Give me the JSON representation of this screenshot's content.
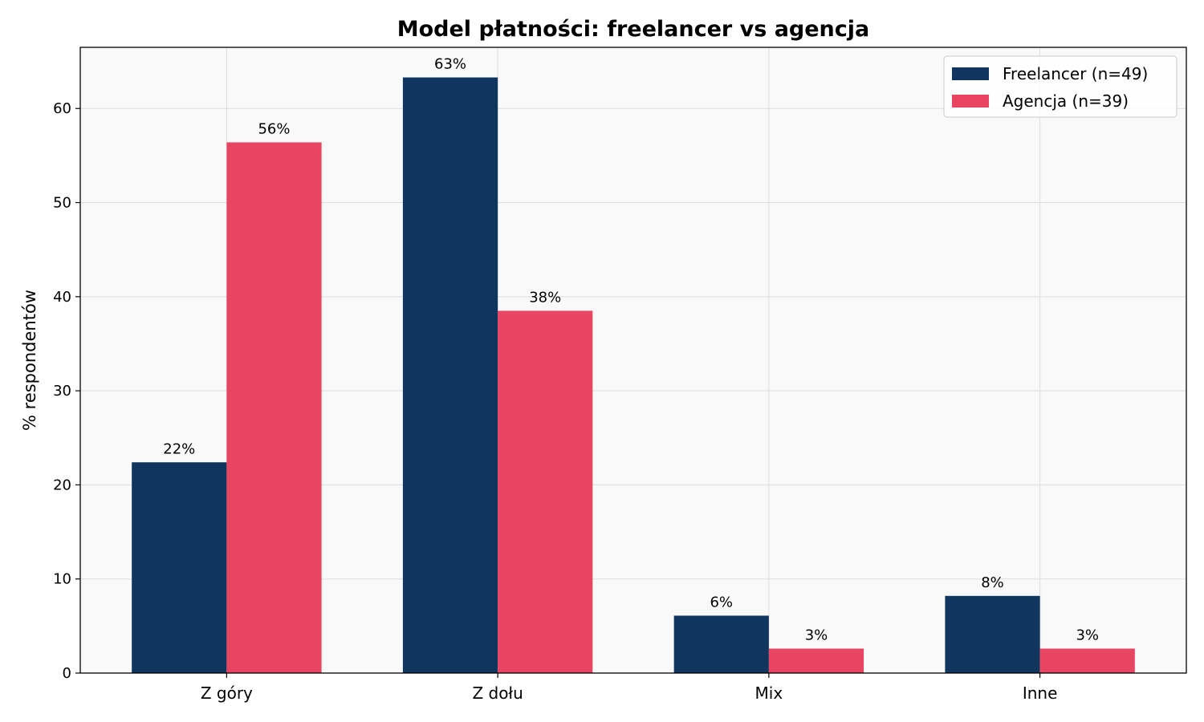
{
  "chart_data": {
    "type": "bar",
    "title": "Model płatności: freelancer vs agencja",
    "xlabel": "",
    "ylabel": "% respondentów",
    "categories": [
      "Z góry",
      "Z dołu",
      "Mix",
      "Inne"
    ],
    "series": [
      {
        "name": "Freelancer (n=49)",
        "color": "#10355e",
        "values": [
          22.4,
          63.3,
          6.1,
          8.2
        ],
        "labels": [
          "22%",
          "63%",
          "6%",
          "8%"
        ]
      },
      {
        "name": "Agencja (n=39)",
        "color": "#e84562",
        "values": [
          56.4,
          38.5,
          2.6,
          2.6
        ],
        "labels": [
          "56%",
          "38%",
          "3%",
          "3%"
        ]
      }
    ],
    "ylim": [
      0,
      66.5
    ],
    "yticks": [
      0,
      10,
      20,
      30,
      40,
      50,
      60
    ],
    "grid": true,
    "legend_position": "top-right",
    "plot_background": "#f9f9f9"
  }
}
